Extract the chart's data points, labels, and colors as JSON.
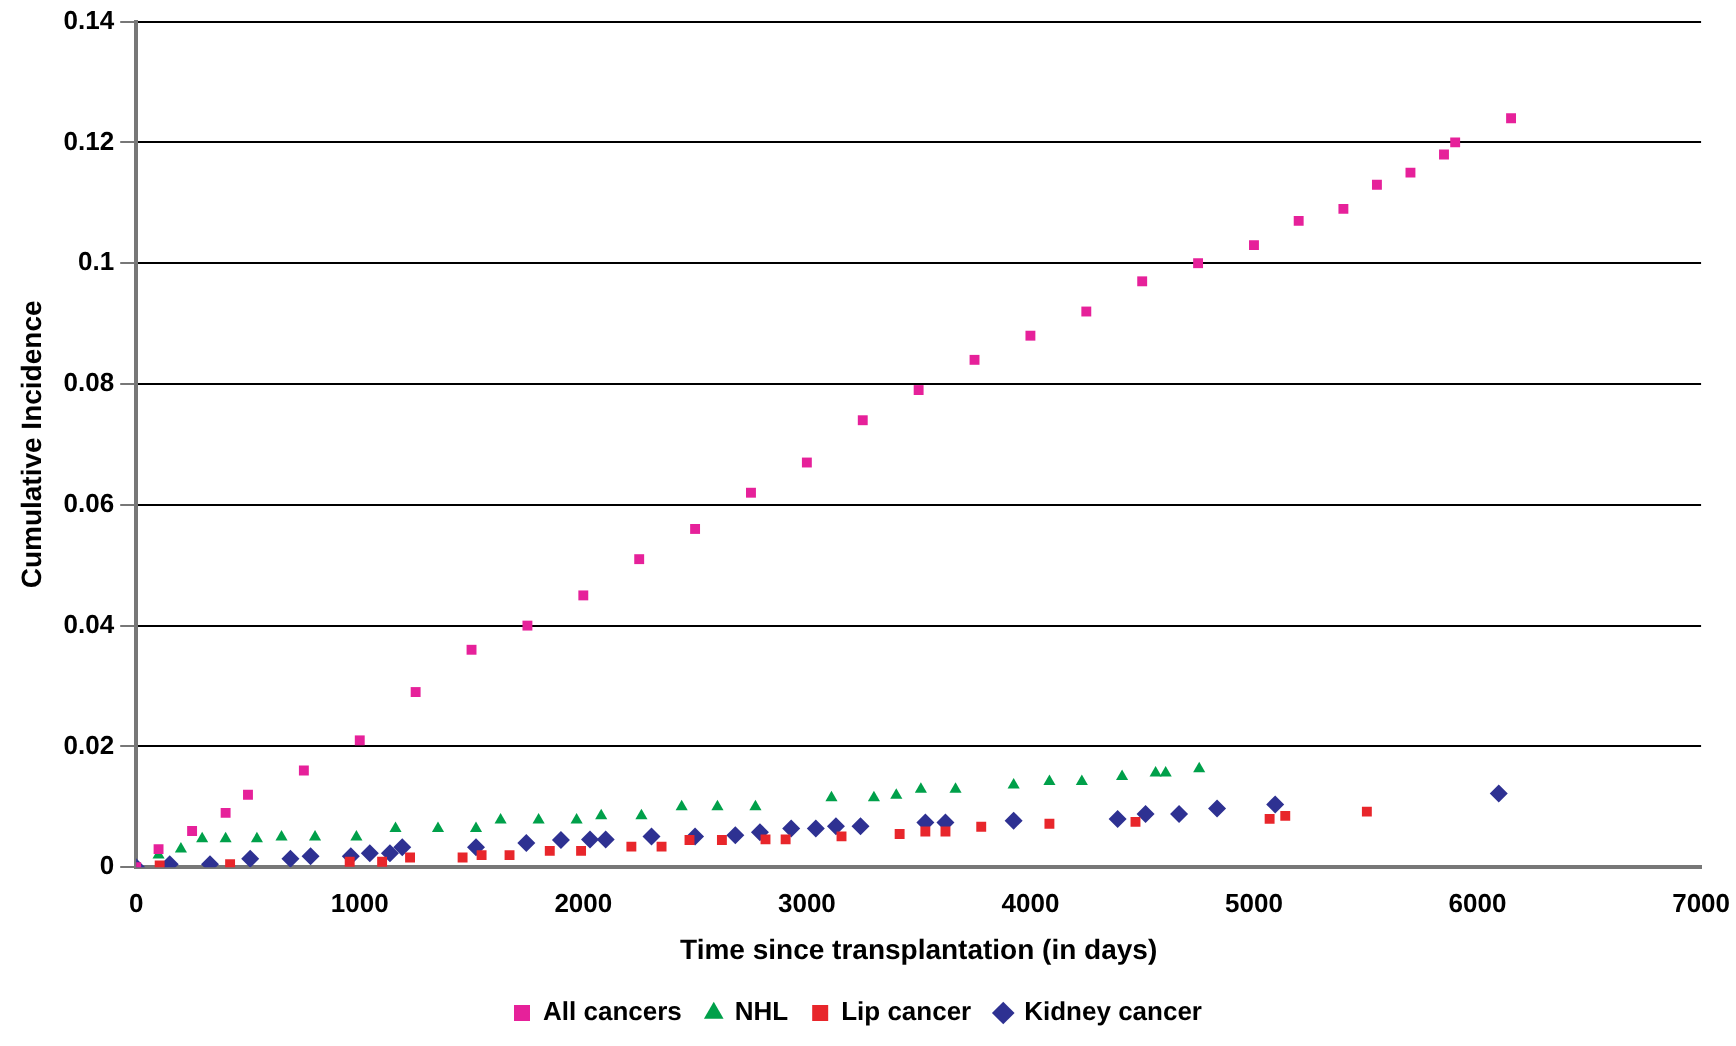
{
  "chart_data": {
    "type": "scatter",
    "xlabel": "Time since transplantation (in days)",
    "ylabel": "Cumulative Incidence",
    "xlim": [
      0,
      7000
    ],
    "xticks": [
      0,
      1000,
      2000,
      3000,
      4000,
      5000,
      6000,
      7000
    ],
    "ylim": [
      0,
      0.14
    ],
    "yticks": [
      0,
      0.02,
      0.04,
      0.06,
      0.08,
      {
        "value": 0.1,
        "label": "0.1"
      },
      0.12,
      0.14
    ],
    "grid": "y",
    "legend": "bottom",
    "series": [
      {
        "name": "All cancers",
        "color": "#e6219a",
        "marker": "square",
        "x": [
          0,
          100,
          250,
          400,
          500,
          750,
          1000,
          1250,
          1500,
          1750,
          2000,
          2250,
          2500,
          2750,
          3000,
          3250,
          3500,
          3750,
          4000,
          4250,
          4500,
          4750,
          5000,
          5200,
          5400,
          5550,
          5700,
          5850,
          5900,
          6150
        ],
        "values": [
          0,
          0.003,
          0.006,
          0.009,
          0.012,
          0.016,
          0.021,
          0.029,
          0.036,
          0.04,
          0.045,
          0.051,
          0.056,
          0.062,
          0.067,
          0.074,
          0.079,
          0.084,
          0.088,
          0.092,
          0.097,
          0.1,
          0.103,
          0.107,
          0.109,
          0.113,
          0.115,
          0.118,
          0.12,
          0.124
        ]
      },
      {
        "name": "NHL",
        "color": "#00a04a",
        "marker": "triangle",
        "x": [
          100,
          200,
          295,
          400,
          540,
          650,
          800,
          985,
          1160,
          1350,
          1520,
          1630,
          1800,
          1970,
          2080,
          2260,
          2440,
          2600,
          2770,
          3110,
          3300,
          3400,
          3510,
          3665,
          3925,
          4085,
          4230,
          4410,
          4560,
          4605,
          4755
        ],
        "values": [
          0.002,
          0.003,
          0.0047,
          0.0047,
          0.0047,
          0.005,
          0.005,
          0.005,
          0.0064,
          0.0064,
          0.0064,
          0.0078,
          0.0078,
          0.0078,
          0.0085,
          0.0085,
          0.01,
          0.01,
          0.01,
          0.0115,
          0.0115,
          0.0119,
          0.0129,
          0.0129,
          0.0136,
          0.0142,
          0.0142,
          0.015,
          0.0156,
          0.0156,
          0.0163
        ]
      },
      {
        "name": "Lip cancer",
        "color": "#e8262b",
        "marker": "square",
        "x": [
          105,
          420,
          955,
          1100,
          1225,
          1460,
          1545,
          1670,
          1850,
          1990,
          2215,
          2350,
          2475,
          2620,
          2815,
          2905,
          3155,
          3415,
          3530,
          3620,
          3780,
          4085,
          4470,
          5070,
          5140,
          5505
        ],
        "values": [
          0.0003,
          0.0005,
          0.0009,
          0.0009,
          0.0016,
          0.0016,
          0.002,
          0.002,
          0.0027,
          0.0027,
          0.0034,
          0.0034,
          0.0045,
          0.0045,
          0.0046,
          0.0046,
          0.0051,
          0.0055,
          0.0059,
          0.0059,
          0.0067,
          0.0072,
          0.0075,
          0.008,
          0.0085,
          0.0092
        ]
      },
      {
        "name": "Kidney cancer",
        "color": "#2e3192",
        "marker": "diamond",
        "x": [
          0,
          150,
          330,
          510,
          690,
          780,
          960,
          1045,
          1135,
          1190,
          1520,
          1745,
          1900,
          2030,
          2100,
          2305,
          2500,
          2680,
          2790,
          2930,
          3040,
          3130,
          3240,
          3530,
          3620,
          3925,
          4390,
          4515,
          4665,
          4835,
          5095,
          6095
        ],
        "values": [
          0,
          0.0005,
          0.0005,
          0.0014,
          0.0014,
          0.0018,
          0.0018,
          0.0023,
          0.0023,
          0.0033,
          0.0033,
          0.004,
          0.0045,
          0.0046,
          0.0046,
          0.0051,
          0.0051,
          0.0053,
          0.0058,
          0.0064,
          0.0064,
          0.0068,
          0.0068,
          0.0074,
          0.0074,
          0.0077,
          0.008,
          0.0088,
          0.0088,
          0.0097,
          0.0104,
          0.0122
        ]
      }
    ]
  }
}
